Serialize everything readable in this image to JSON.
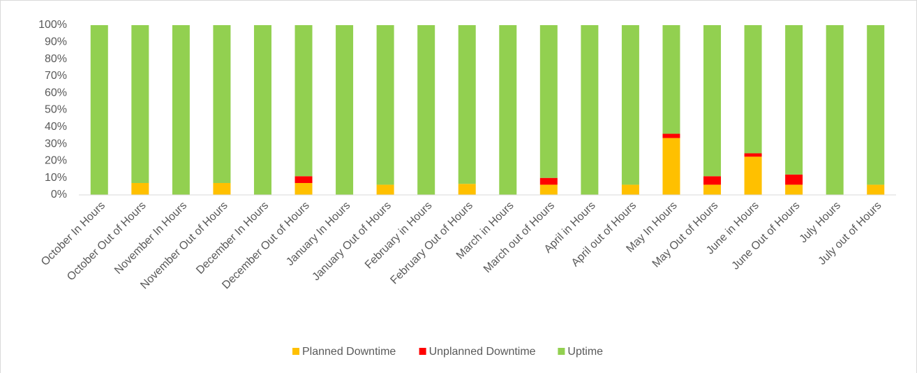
{
  "chart_data": {
    "type": "stacked_bar",
    "categories": [
      "October In Hours",
      "October Out of Hours",
      "November In Hours",
      "November Out of Hours",
      "December In Hours",
      "December Out of Hours",
      "January In Hours",
      "January Out of Hours",
      "February in Hours",
      "February Out of Hours",
      "March in Hours",
      "March out of Hours",
      "April in Hours",
      "April out of Hours",
      "May In Hours",
      "May Out of Hours",
      "June in Hours",
      "June Out of Hours",
      "July Hours",
      "July out of Hours"
    ],
    "series": [
      {
        "name": "Planned Downtime",
        "color": "#ffc000",
        "values": [
          0,
          7,
          0,
          7,
          0,
          7,
          0,
          6,
          0,
          6.5,
          0,
          6,
          0,
          6,
          33.5,
          6,
          22.5,
          6,
          0,
          6
        ]
      },
      {
        "name": "Unplanned Downtime",
        "color": "#ff0000",
        "values": [
          0,
          0,
          0,
          0,
          0,
          4,
          0,
          0,
          0,
          0,
          0,
          4,
          0,
          0,
          2.5,
          5,
          2,
          6,
          0,
          0
        ]
      },
      {
        "name": "Uptime",
        "color": "#92d050",
        "values": [
          100,
          93,
          100,
          93,
          100,
          89,
          100,
          94,
          100,
          93.5,
          100,
          90,
          100,
          94,
          64,
          89,
          75.5,
          88,
          100,
          94
        ]
      }
    ],
    "ylim": [
      0,
      100
    ],
    "yticks": [
      {
        "value": 0,
        "label": "0%"
      },
      {
        "value": 10,
        "label": "10%"
      },
      {
        "value": 20,
        "label": "20%"
      },
      {
        "value": 30,
        "label": "30%"
      },
      {
        "value": 40,
        "label": "40%"
      },
      {
        "value": 50,
        "label": "50%"
      },
      {
        "value": 60,
        "label": "60%"
      },
      {
        "value": 70,
        "label": "70%"
      },
      {
        "value": 80,
        "label": "80%"
      },
      {
        "value": 90,
        "label": "90%"
      },
      {
        "value": 100,
        "label": "100%"
      }
    ],
    "grid": false,
    "legend": "bottom"
  }
}
